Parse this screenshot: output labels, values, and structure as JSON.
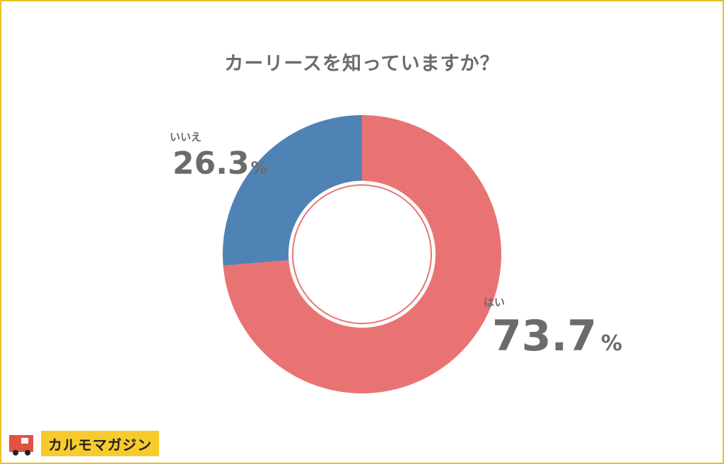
{
  "page": {
    "title": "カーリースを知っていますか？",
    "brand": "カルモマガジン"
  },
  "colors": {
    "frame": "#e8c227",
    "yes": "#e97373",
    "no": "#4f83b5",
    "text": "#6b6b6b",
    "brand_bg": "#f7cb2c",
    "brand_icon": "#e25241"
  },
  "chart_data": {
    "type": "pie",
    "style": "donut",
    "title": "カーリースを知っていますか？",
    "start_angle_deg": 0,
    "direction": "clockwise",
    "slices": [
      {
        "label": "はい",
        "value": 73.7,
        "value_label": "73.7",
        "unit": "%",
        "color": "#e97373"
      },
      {
        "label": "いいえ",
        "value": 26.3,
        "value_label": "26.3",
        "unit": "%",
        "color": "#4f83b5"
      }
    ]
  }
}
